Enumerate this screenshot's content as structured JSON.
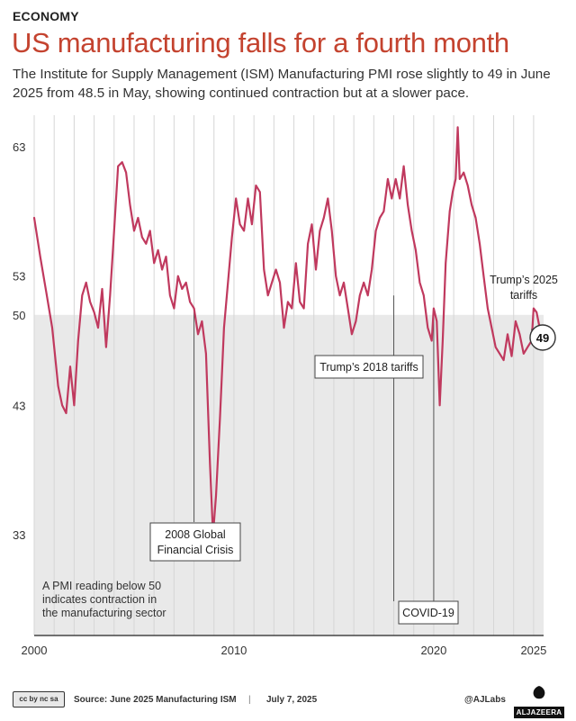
{
  "header": {
    "kicker": "ECONOMY",
    "title": "US manufacturing falls for a fourth month",
    "subtitle": "The Institute for Supply Management (ISM) Manufacturing PMI rose slightly to 49 in June 2025 from 48.5 in May, showing continued contraction but at a slower pace."
  },
  "chart_data": {
    "type": "line",
    "title": "US manufacturing falls for a fourth month",
    "series": [
      {
        "values": [
          [
            2000.0,
            57.5
          ],
          [
            2000.3,
            54.5
          ],
          [
            2000.6,
            51.8
          ],
          [
            2000.9,
            49.0
          ],
          [
            2001.2,
            44.5
          ],
          [
            2001.4,
            43.0
          ],
          [
            2001.6,
            42.4
          ],
          [
            2001.8,
            46.0
          ],
          [
            2002.0,
            43.0
          ],
          [
            2002.2,
            48.0
          ],
          [
            2002.4,
            51.5
          ],
          [
            2002.6,
            52.5
          ],
          [
            2002.8,
            51.0
          ],
          [
            2003.0,
            50.2
          ],
          [
            2003.2,
            49.0
          ],
          [
            2003.4,
            52.0
          ],
          [
            2003.6,
            47.5
          ],
          [
            2003.8,
            51.5
          ],
          [
            2004.0,
            56.5
          ],
          [
            2004.2,
            61.5
          ],
          [
            2004.4,
            61.8
          ],
          [
            2004.6,
            61.0
          ],
          [
            2004.8,
            58.5
          ],
          [
            2005.0,
            56.5
          ],
          [
            2005.2,
            57.5
          ],
          [
            2005.4,
            56.0
          ],
          [
            2005.6,
            55.5
          ],
          [
            2005.8,
            56.5
          ],
          [
            2006.0,
            54.0
          ],
          [
            2006.2,
            55.0
          ],
          [
            2006.4,
            53.5
          ],
          [
            2006.6,
            54.5
          ],
          [
            2006.8,
            51.5
          ],
          [
            2007.0,
            50.5
          ],
          [
            2007.2,
            53.0
          ],
          [
            2007.4,
            52.0
          ],
          [
            2007.6,
            52.5
          ],
          [
            2007.8,
            51.0
          ],
          [
            2008.0,
            50.5
          ],
          [
            2008.2,
            48.5
          ],
          [
            2008.4,
            49.5
          ],
          [
            2008.6,
            47.0
          ],
          [
            2008.8,
            38.5
          ],
          [
            2008.95,
            33.0
          ],
          [
            2009.1,
            36.0
          ],
          [
            2009.3,
            42.0
          ],
          [
            2009.5,
            49.0
          ],
          [
            2009.7,
            52.5
          ],
          [
            2009.9,
            56.0
          ],
          [
            2010.1,
            59.0
          ],
          [
            2010.3,
            57.0
          ],
          [
            2010.5,
            56.5
          ],
          [
            2010.7,
            59.0
          ],
          [
            2010.9,
            57.0
          ],
          [
            2011.1,
            60.0
          ],
          [
            2011.3,
            59.5
          ],
          [
            2011.5,
            53.5
          ],
          [
            2011.7,
            51.5
          ],
          [
            2011.9,
            52.5
          ],
          [
            2012.1,
            53.5
          ],
          [
            2012.3,
            52.5
          ],
          [
            2012.5,
            49.0
          ],
          [
            2012.7,
            51.0
          ],
          [
            2012.9,
            50.5
          ],
          [
            2013.1,
            54.0
          ],
          [
            2013.3,
            51.0
          ],
          [
            2013.5,
            50.5
          ],
          [
            2013.7,
            55.5
          ],
          [
            2013.9,
            57.0
          ],
          [
            2014.1,
            53.5
          ],
          [
            2014.3,
            56.5
          ],
          [
            2014.5,
            57.5
          ],
          [
            2014.7,
            59.0
          ],
          [
            2014.9,
            56.5
          ],
          [
            2015.1,
            53.0
          ],
          [
            2015.3,
            51.5
          ],
          [
            2015.5,
            52.5
          ],
          [
            2015.7,
            50.5
          ],
          [
            2015.9,
            48.5
          ],
          [
            2016.1,
            49.5
          ],
          [
            2016.3,
            51.5
          ],
          [
            2016.5,
            52.5
          ],
          [
            2016.7,
            51.5
          ],
          [
            2016.9,
            53.5
          ],
          [
            2017.1,
            56.5
          ],
          [
            2017.3,
            57.5
          ],
          [
            2017.5,
            58.0
          ],
          [
            2017.7,
            60.5
          ],
          [
            2017.9,
            59.0
          ],
          [
            2018.1,
            60.5
          ],
          [
            2018.3,
            59.0
          ],
          [
            2018.5,
            61.5
          ],
          [
            2018.7,
            58.5
          ],
          [
            2018.9,
            56.5
          ],
          [
            2019.1,
            55.0
          ],
          [
            2019.3,
            52.5
          ],
          [
            2019.5,
            51.5
          ],
          [
            2019.7,
            49.0
          ],
          [
            2019.9,
            48.0
          ],
          [
            2020.0,
            50.5
          ],
          [
            2020.15,
            49.5
          ],
          [
            2020.3,
            43.0
          ],
          [
            2020.45,
            48.0
          ],
          [
            2020.6,
            54.0
          ],
          [
            2020.8,
            58.0
          ],
          [
            2020.95,
            59.5
          ],
          [
            2021.1,
            60.5
          ],
          [
            2021.2,
            64.5
          ],
          [
            2021.3,
            60.5
          ],
          [
            2021.5,
            61.0
          ],
          [
            2021.7,
            60.0
          ],
          [
            2021.9,
            58.5
          ],
          [
            2022.1,
            57.5
          ],
          [
            2022.3,
            55.5
          ],
          [
            2022.5,
            53.0
          ],
          [
            2022.7,
            50.5
          ],
          [
            2022.9,
            49.0
          ],
          [
            2023.1,
            47.5
          ],
          [
            2023.3,
            47.0
          ],
          [
            2023.5,
            46.5
          ],
          [
            2023.7,
            48.5
          ],
          [
            2023.9,
            46.8
          ],
          [
            2024.1,
            49.5
          ],
          [
            2024.3,
            48.5
          ],
          [
            2024.5,
            47.0
          ],
          [
            2024.7,
            47.5
          ],
          [
            2024.9,
            48.0
          ],
          [
            2025.0,
            50.5
          ],
          [
            2025.15,
            50.2
          ],
          [
            2025.3,
            49.0
          ],
          [
            2025.45,
            48.7
          ],
          [
            2025.5,
            49.0
          ]
        ]
      }
    ],
    "x_ticks": [
      "2000",
      "2010",
      "2020",
      "2025"
    ],
    "y_ticks": [
      "63",
      "53",
      "50",
      "43",
      "33"
    ],
    "xlim": [
      2000,
      2025.5
    ],
    "ylim": [
      25,
      65
    ],
    "threshold": 50,
    "last_value_label": "49",
    "grid": "vertical",
    "annotations": [
      {
        "x": 2008.0,
        "label_lines": [
          "2008 Global",
          "Financial Crisis"
        ]
      },
      {
        "x": 2018.0,
        "label_lines": [
          "Trump’s 2018 tariffs"
        ]
      },
      {
        "x": 2020.0,
        "label_lines": [
          "COVID-19"
        ]
      },
      {
        "x": 2025.0,
        "label_lines": [
          "Trump’s 2025",
          "tariffs"
        ]
      }
    ],
    "note_lines": [
      "A PMI reading below 50",
      "indicates contraction in",
      "the manufacturing sector"
    ],
    "colors": {
      "line": "#c0395e",
      "contraction_band": "#e9e9e9",
      "title": "#c4432f"
    }
  },
  "footer": {
    "license": "cc by nc sa",
    "source": "Source:  June 2025 Manufacturing ISM",
    "separator": "|",
    "date": "July 7, 2025",
    "handle": "@AJLabs",
    "brand": "ALJAZEERA"
  }
}
